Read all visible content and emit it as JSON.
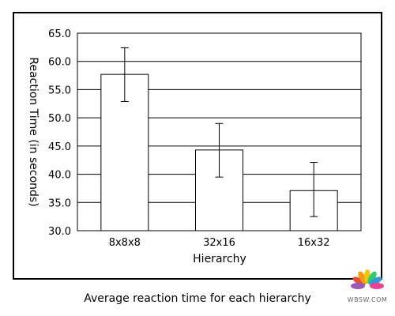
{
  "chart_data": {
    "type": "bar",
    "categories": [
      "8x8x8",
      "32x16",
      "16x32"
    ],
    "values": [
      57.7,
      44.3,
      37.1
    ],
    "error_low": [
      52.9,
      39.5,
      32.5
    ],
    "error_high": [
      62.4,
      49.0,
      42.1
    ],
    "ylim": [
      30.0,
      65.0
    ],
    "y_ticks": [
      "30.0",
      "35.0",
      "40.0",
      "45.0",
      "50.0",
      "55.0",
      "60.0",
      "65.0"
    ],
    "y_tick_values": [
      30,
      35,
      40,
      45,
      50,
      55,
      60,
      65
    ],
    "xlabel": "Hierarchy",
    "ylabel": "Reaction Time (in seconds)",
    "grid": "horizontal",
    "caption": "Average reaction time for each hierarchy",
    "bar_color": "#ffffff",
    "line_color": "#000000"
  },
  "watermark": {
    "text": "WBSW.COM"
  }
}
